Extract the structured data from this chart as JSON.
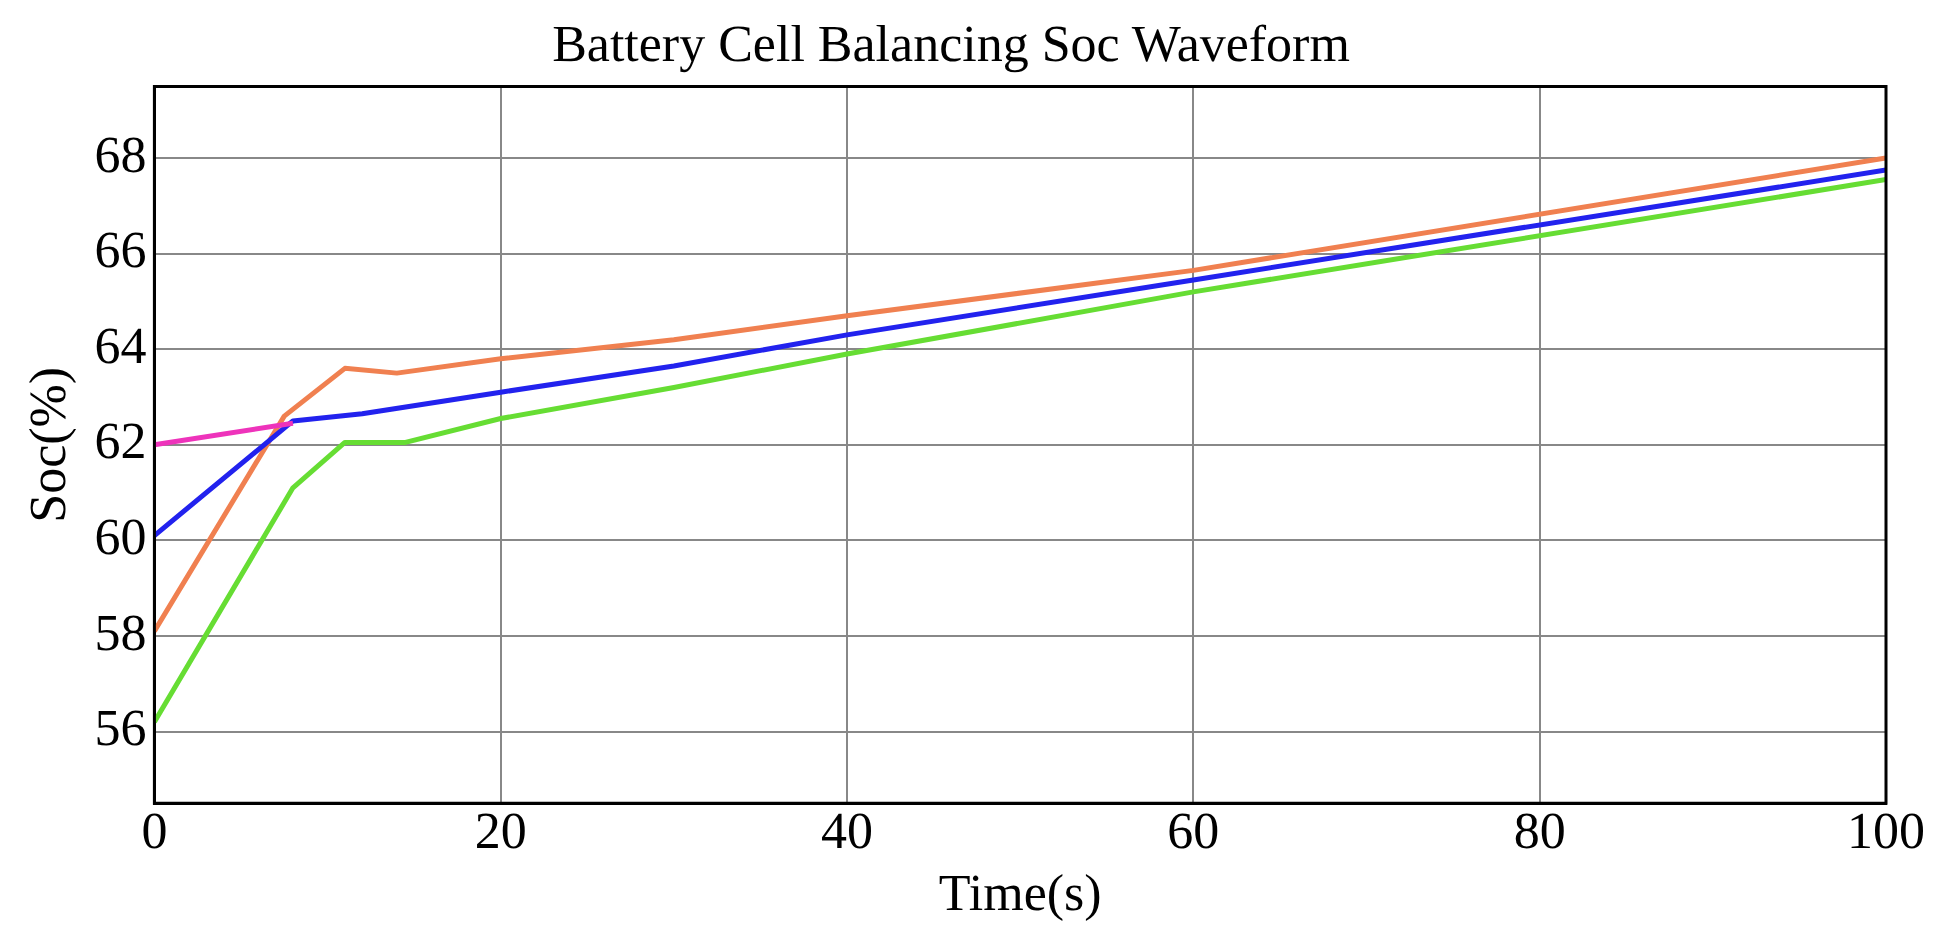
{
  "chart_data": {
    "type": "line",
    "title": "Battery Cell Balancing Soc Waveform",
    "xlabel": "Time(s)",
    "ylabel": "Soc(%)",
    "xlim": [
      0,
      100
    ],
    "xticks": [
      0,
      20,
      40,
      60,
      80,
      100
    ],
    "ylim": [
      54.5,
      69.5
    ],
    "yticks": [
      56,
      58,
      60,
      62,
      64,
      66,
      68
    ],
    "grid": true,
    "marker": "none",
    "line_style": "solid",
    "series": [
      {
        "color": "#ee33bb",
        "x": [
          0,
          8
        ],
        "values": [
          62.0,
          62.45
        ]
      },
      {
        "color": "#2222ee",
        "x": [
          0,
          8,
          12,
          20,
          30,
          40,
          60,
          100
        ],
        "values": [
          60.1,
          62.5,
          62.65,
          63.1,
          63.65,
          64.3,
          65.45,
          67.75
        ]
      },
      {
        "color": "#f08050",
        "x": [
          0,
          7.5,
          11,
          14,
          20,
          30,
          40,
          60,
          100
        ],
        "values": [
          58.1,
          62.6,
          63.6,
          63.5,
          63.8,
          64.2,
          64.7,
          65.65,
          68.0
        ]
      },
      {
        "color": "#66dd33",
        "x": [
          0,
          8,
          11,
          14.5,
          20,
          30,
          40,
          60,
          100
        ],
        "values": [
          56.2,
          61.1,
          62.05,
          62.05,
          62.55,
          63.2,
          63.9,
          65.2,
          67.55
        ]
      }
    ]
  }
}
